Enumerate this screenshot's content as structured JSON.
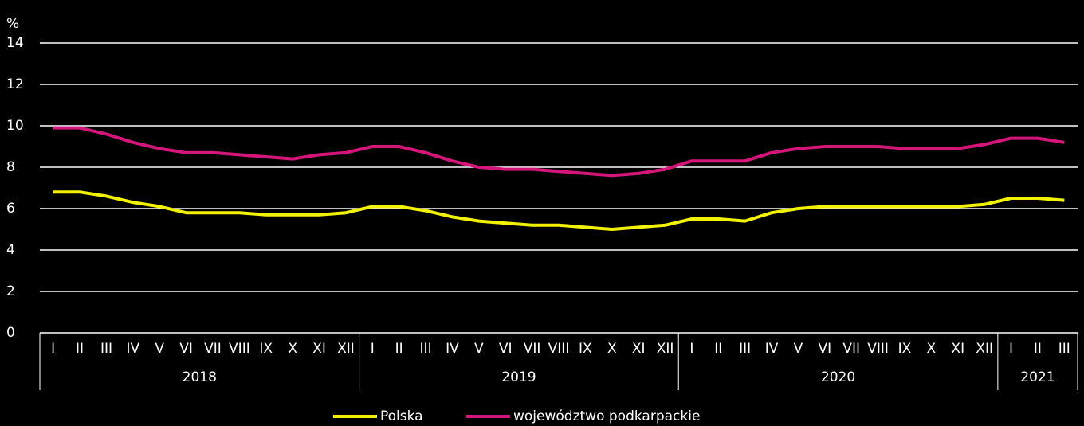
{
  "chart_data": {
    "type": "line",
    "y_label": "%",
    "groups": [
      {
        "label": "2018",
        "categories": [
          "I",
          "II",
          "III",
          "IV",
          "V",
          "VI",
          "VII",
          "VIII",
          "IX",
          "X",
          "XI",
          "XII"
        ]
      },
      {
        "label": "2019",
        "categories": [
          "I",
          "II",
          "III",
          "IV",
          "V",
          "VI",
          "VII",
          "VIII",
          "IX",
          "X",
          "XI",
          "XII"
        ]
      },
      {
        "label": "2020",
        "categories": [
          "I",
          "II",
          "III",
          "IV",
          "V",
          "VI",
          "VII",
          "VIII",
          "IX",
          "X",
          "XI",
          "XII"
        ]
      },
      {
        "label": "2021",
        "categories": [
          "I",
          "II",
          "III"
        ]
      }
    ],
    "series": [
      {
        "name": "Polska",
        "color": "#f2f200",
        "values": [
          6.8,
          6.8,
          6.6,
          6.3,
          6.1,
          5.8,
          5.8,
          5.8,
          5.7,
          5.7,
          5.7,
          5.8,
          6.1,
          6.1,
          5.9,
          5.6,
          5.4,
          5.3,
          5.2,
          5.2,
          5.1,
          5.0,
          5.1,
          5.2,
          5.5,
          5.5,
          5.4,
          5.8,
          6.0,
          6.1,
          6.1,
          6.1,
          6.1,
          6.1,
          6.1,
          6.2,
          6.5,
          6.5,
          6.4
        ]
      },
      {
        "name": "województwo podkarpackie",
        "color": "#d4157a",
        "values": [
          9.9,
          9.9,
          9.6,
          9.2,
          8.9,
          8.7,
          8.7,
          8.6,
          8.5,
          8.4,
          8.6,
          8.7,
          9.0,
          9.0,
          8.7,
          8.3,
          8.0,
          7.9,
          7.9,
          7.8,
          7.7,
          7.6,
          7.7,
          7.9,
          8.3,
          8.3,
          8.3,
          8.7,
          8.9,
          9.0,
          9.0,
          9.0,
          8.9,
          8.9,
          8.9,
          9.1,
          9.4,
          9.4,
          9.2
        ]
      }
    ],
    "ylim": [
      0,
      14
    ],
    "yticks": [
      0,
      2,
      4,
      6,
      8,
      10,
      12,
      14
    ],
    "grid": true,
    "legend": "bottom"
  }
}
